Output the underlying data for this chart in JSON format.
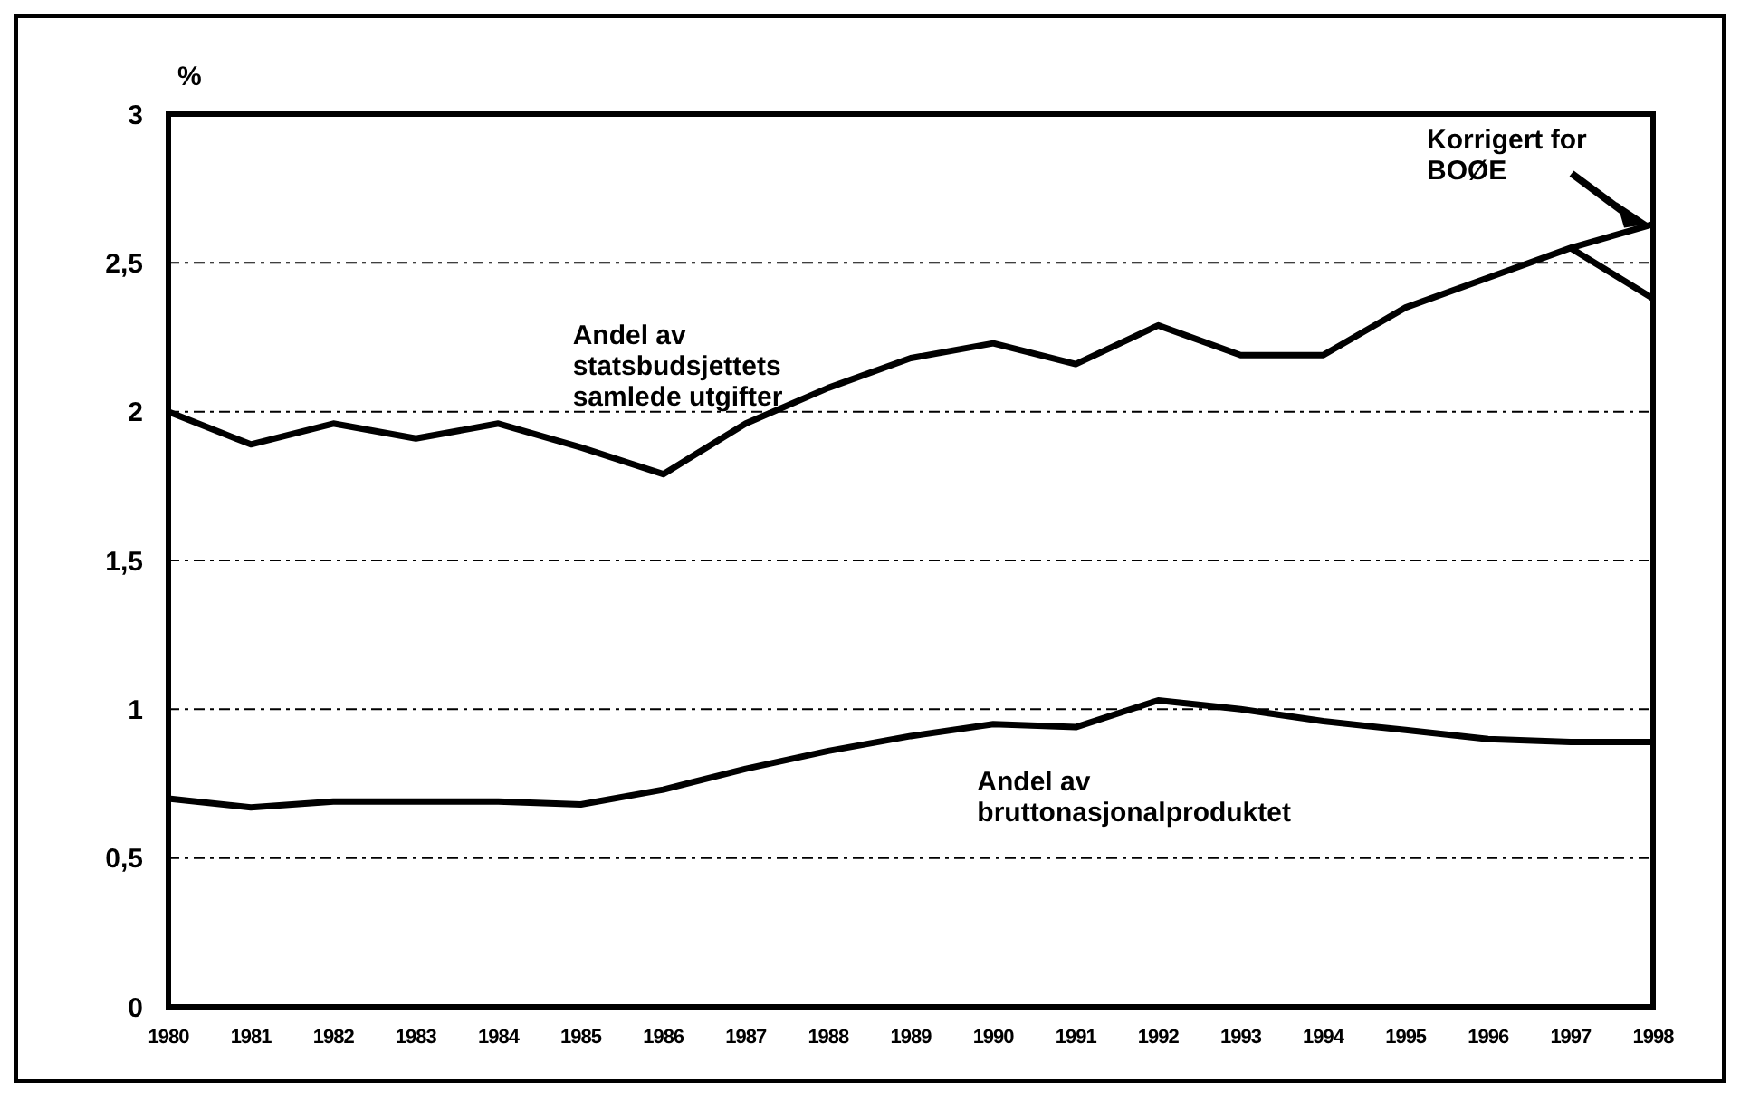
{
  "chart_data": {
    "type": "line",
    "ylabel": "%",
    "x": [
      1980,
      1981,
      1982,
      1983,
      1984,
      1985,
      1986,
      1987,
      1988,
      1989,
      1990,
      1991,
      1992,
      1993,
      1994,
      1995,
      1996,
      1997,
      1998
    ],
    "xlim": [
      1980,
      1998
    ],
    "xticks": [
      1980,
      1981,
      1982,
      1983,
      1984,
      1985,
      1986,
      1987,
      1988,
      1989,
      1990,
      1991,
      1992,
      1993,
      1994,
      1995,
      1996,
      1997,
      1998
    ],
    "ylim": [
      0,
      3
    ],
    "yticks": [
      0,
      {
        "value": 0.5,
        "label": "0,5"
      },
      1,
      {
        "value": 1.5,
        "label": "1,5"
      },
      2,
      {
        "value": 2.5,
        "label": "2,5"
      },
      3
    ],
    "grid": "y",
    "marker": "none",
    "line_style": "solid",
    "series": [
      {
        "name": "Andel av statsbudsjettets samlede utgifter",
        "color": "#000000",
        "values": [
          2.0,
          1.89,
          1.96,
          1.91,
          1.96,
          1.88,
          1.79,
          1.96,
          2.08,
          2.18,
          2.23,
          2.16,
          2.29,
          2.19,
          2.19,
          2.35,
          2.45,
          2.55,
          2.38
        ]
      },
      {
        "name": "Korrigert for BOØE",
        "color": "#000000",
        "x": [
          1997,
          1998
        ],
        "values": [
          2.55,
          2.63
        ]
      },
      {
        "name": "Andel av bruttonasjonalproduktet",
        "color": "#000000",
        "values": [
          0.7,
          0.67,
          0.69,
          0.69,
          0.69,
          0.68,
          0.73,
          0.8,
          0.86,
          0.91,
          0.95,
          0.94,
          1.03,
          1.0,
          0.96,
          0.93,
          0.9,
          0.89,
          0.89
        ]
      }
    ]
  }
}
